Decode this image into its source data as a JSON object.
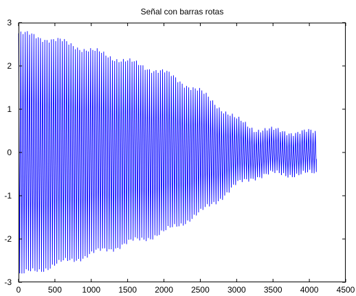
{
  "chart_data": {
    "type": "line",
    "title": "Señal con barras rotas",
    "xlabel": "",
    "ylabel": "",
    "xlim": [
      0,
      4500
    ],
    "ylim": [
      -3,
      3
    ],
    "x_ticks": [
      "0",
      "500",
      "1000",
      "1500",
      "2000",
      "2500",
      "3000",
      "3500",
      "4000",
      "4500"
    ],
    "y_ticks": [
      "-3",
      "-2",
      "-1",
      "0",
      "1",
      "2",
      "3"
    ],
    "grid": false,
    "legend": "none",
    "series": [
      {
        "color": "#0000ff",
        "x_range": [
          1,
          4096
        ],
        "envelope": {
          "x": [
            0,
            100,
            500,
            1000,
            1500,
            2000,
            2500,
            3000,
            3250,
            3500,
            4096
          ],
          "upper": [
            2.75,
            2.72,
            2.6,
            2.35,
            2.1,
            1.85,
            1.4,
            0.75,
            0.55,
            0.5,
            0.45
          ],
          "lower": [
            -2.85,
            -2.8,
            -2.6,
            -2.35,
            -2.1,
            -1.85,
            -1.4,
            -0.75,
            -0.55,
            -0.5,
            -0.5
          ]
        },
        "end_value": -0.15
      }
    ]
  },
  "colors": {
    "signal": "#0000ff",
    "axes": "#000000",
    "background": "#ffffff"
  }
}
